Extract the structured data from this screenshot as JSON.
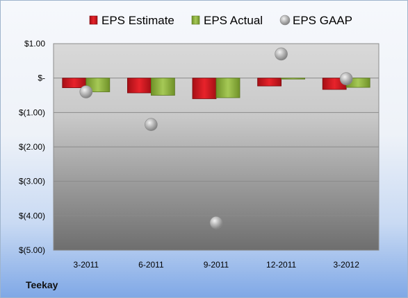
{
  "company": "Teekay",
  "chart_data": {
    "type": "bar",
    "categories": [
      "3-2011",
      "6-2011",
      "9-2011",
      "12-2011",
      "3-2012"
    ],
    "series": [
      {
        "name": "EPS Estimate",
        "kind": "bar",
        "color": "#c8161d",
        "values": [
          -0.28,
          -0.43,
          -0.6,
          -0.23,
          -0.33
        ]
      },
      {
        "name": "EPS Actual",
        "kind": "bar",
        "color": "#8db23c",
        "values": [
          -0.4,
          -0.5,
          -0.57,
          0.0,
          -0.27
        ]
      },
      {
        "name": "EPS GAAP",
        "kind": "scatter",
        "color": "#a9a9a9",
        "values": [
          -0.4,
          -1.35,
          -4.2,
          0.7,
          -0.02
        ]
      }
    ],
    "y_ticks": [
      1.0,
      0.0,
      -1.0,
      -2.0,
      -3.0,
      -4.0,
      -5.0
    ],
    "y_tick_labels": [
      "$1.00",
      "$-",
      "$(1.00)",
      "$(2.00)",
      "$(3.00)",
      "$(4.00)",
      "$(5.00)"
    ],
    "ylim": [
      -5.0,
      1.0
    ],
    "grid": true,
    "legend_position": "top"
  }
}
